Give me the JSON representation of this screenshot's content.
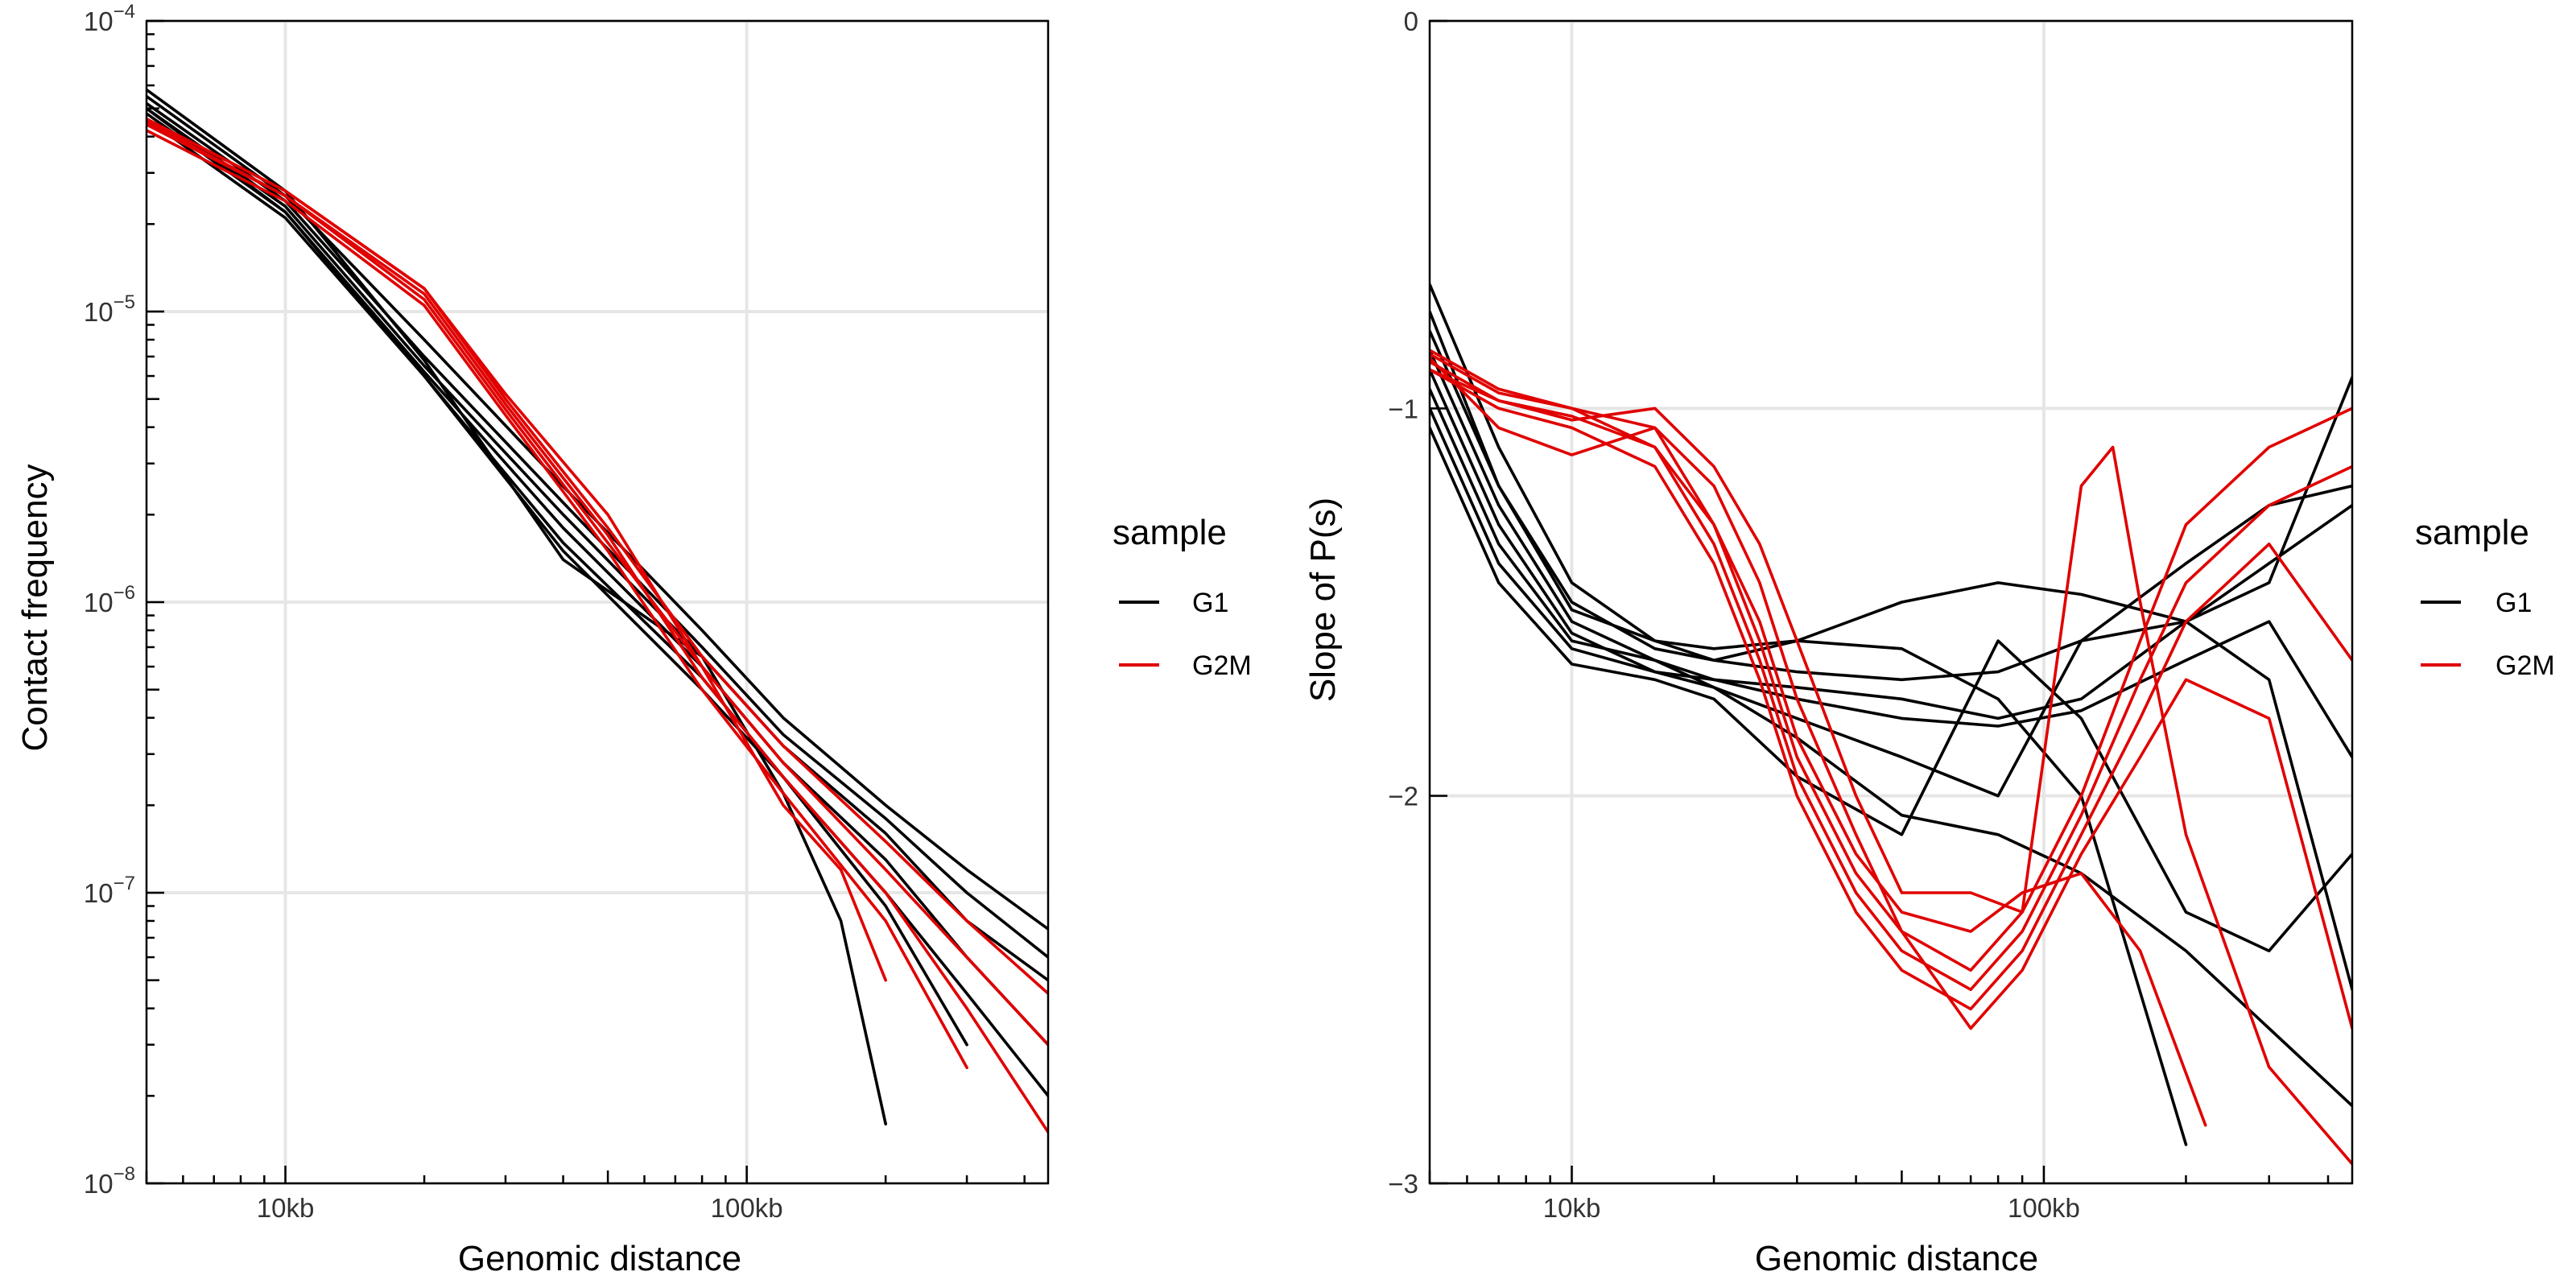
{
  "chart_data": [
    {
      "type": "line",
      "xlabel": "Genomic distance",
      "ylabel": "Contact frequency",
      "xscale": "log",
      "yscale": "log",
      "xlim": [
        5000,
        450000
      ],
      "ylim": [
        1e-08,
        0.0001
      ],
      "x_ticks": [
        {
          "value": 10000,
          "label": "10kb"
        },
        {
          "value": 100000,
          "label": "100kb"
        }
      ],
      "y_ticks": [
        {
          "value": 1e-08,
          "base": "10",
          "exp": "−8"
        },
        {
          "value": 1e-07,
          "base": "10",
          "exp": "−7"
        },
        {
          "value": 1e-06,
          "base": "10",
          "exp": "−6"
        },
        {
          "value": 1e-05,
          "base": "10",
          "exp": "−5"
        },
        {
          "value": 0.0001,
          "base": "10",
          "exp": "−4"
        }
      ],
      "grid": true,
      "legend_position": "right",
      "series": [
        {
          "group": "G1",
          "x": [
            5000,
            10000,
            20000,
            40000,
            80000,
            120000,
            200000,
            300000,
            450000
          ],
          "y": [
            5.5e-05,
            2.5e-05,
            8e-06,
            2.5e-06,
            8e-07,
            4e-07,
            2e-07,
            1.2e-07,
            7.5e-08
          ]
        },
        {
          "group": "G1",
          "x": [
            5000,
            10000,
            20000,
            40000,
            80000,
            120000,
            200000,
            300000,
            450000
          ],
          "y": [
            5.2e-05,
            2.4e-05,
            7e-06,
            2.2e-06,
            7e-07,
            3.5e-07,
            1.8e-07,
            1e-07,
            6e-08
          ]
        },
        {
          "group": "G1",
          "x": [
            5000,
            10000,
            20000,
            40000,
            80000,
            120000,
            200000,
            300000,
            450000
          ],
          "y": [
            5e-05,
            2.3e-05,
            6.5e-06,
            2e-06,
            6.5e-07,
            3.2e-07,
            1.6e-07,
            8e-08,
            5e-08
          ]
        },
        {
          "group": "G1",
          "x": [
            5000,
            10000,
            20000,
            40000,
            80000,
            120000,
            200000,
            300000,
            450000
          ],
          "y": [
            4.8e-05,
            2.2e-05,
            6.2e-06,
            1.8e-06,
            6e-07,
            2.8e-07,
            1.3e-07,
            6e-08,
            3e-08
          ]
        },
        {
          "group": "G1",
          "x": [
            5000,
            10000,
            20000,
            40000,
            80000,
            120000,
            200000,
            300000,
            450000
          ],
          "y": [
            4.6e-05,
            2.1e-05,
            6e-06,
            1.6e-06,
            5.5e-07,
            2.5e-07,
            1e-07,
            4.5e-08,
            2e-08
          ]
        },
        {
          "group": "G1",
          "x": [
            5000,
            10000,
            20000,
            40000,
            80000,
            120000,
            160000,
            200000
          ],
          "y": [
            5.8e-05,
            2.6e-05,
            6.8e-06,
            1.4e-06,
            6.5e-07,
            2.2e-07,
            8e-08,
            1.6e-08
          ]
        },
        {
          "group": "G1",
          "x": [
            5000,
            10000,
            20000,
            40000,
            80000,
            120000,
            200000,
            300000
          ],
          "y": [
            5e-05,
            2.2e-05,
            6e-06,
            1.5e-06,
            5e-07,
            2.5e-07,
            9e-08,
            3e-08
          ]
        },
        {
          "group": "G2M",
          "x": [
            5000,
            10000,
            20000,
            30000,
            50000,
            80000,
            120000,
            200000,
            300000,
            450000
          ],
          "y": [
            4.6e-05,
            2.6e-05,
            1.2e-05,
            5e-06,
            1.8e-06,
            6.5e-07,
            3.2e-07,
            1.5e-07,
            8e-08,
            4.5e-08
          ]
        },
        {
          "group": "G2M",
          "x": [
            5000,
            10000,
            20000,
            30000,
            50000,
            80000,
            120000,
            200000,
            300000,
            450000
          ],
          "y": [
            4.4e-05,
            2.5e-05,
            1.1e-05,
            4.6e-06,
            1.6e-06,
            6e-07,
            2.8e-07,
            1.2e-07,
            6e-08,
            3e-08
          ]
        },
        {
          "group": "G2M",
          "x": [
            5000,
            10000,
            20000,
            30000,
            50000,
            80000,
            120000,
            200000,
            300000,
            450000
          ],
          "y": [
            4.5e-05,
            2.5e-05,
            1.15e-05,
            4.8e-06,
            1.7e-06,
            5.5e-07,
            2.5e-07,
            1e-07,
            4e-08,
            1.5e-08
          ]
        },
        {
          "group": "G2M",
          "x": [
            5000,
            10000,
            20000,
            30000,
            50000,
            80000,
            120000,
            200000,
            300000
          ],
          "y": [
            4.2e-05,
            2.4e-05,
            1.05e-05,
            4.4e-06,
            1.5e-06,
            5e-07,
            2.2e-07,
            8e-08,
            2.5e-08
          ]
        },
        {
          "group": "G2M",
          "x": [
            5000,
            10000,
            20000,
            30000,
            50000,
            80000,
            120000,
            160000,
            200000
          ],
          "y": [
            4.6e-05,
            2.6e-05,
            1.2e-05,
            5.2e-06,
            2e-06,
            6e-07,
            2e-07,
            1.2e-07,
            5e-08
          ]
        }
      ]
    },
    {
      "type": "line",
      "xlabel": "Genomic distance",
      "ylabel": "Slope of P(s)",
      "xscale": "log",
      "yscale": "linear",
      "xlim": [
        5000,
        450000
      ],
      "ylim": [
        -3,
        0
      ],
      "x_ticks": [
        {
          "value": 10000,
          "label": "10kb"
        },
        {
          "value": 100000,
          "label": "100kb"
        }
      ],
      "y_ticks": [
        {
          "value": 0,
          "label": "0"
        },
        {
          "value": -1,
          "label": "−1"
        },
        {
          "value": -2,
          "label": "−2"
        },
        {
          "value": -3,
          "label": "−3"
        }
      ],
      "grid": true,
      "legend_position": "right",
      "series": [
        {
          "group": "G1",
          "x": [
            5000,
            7000,
            10000,
            15000,
            20000,
            30000,
            50000,
            80000,
            120000,
            200000,
            300000,
            450000
          ],
          "y": [
            -0.68,
            -1.1,
            -1.45,
            -1.6,
            -1.65,
            -1.6,
            -1.5,
            -1.45,
            -1.48,
            -1.55,
            -1.45,
            -0.92
          ]
        },
        {
          "group": "G1",
          "x": [
            5000,
            7000,
            10000,
            15000,
            20000,
            30000,
            50000,
            80000,
            120000,
            200000,
            300000,
            450000
          ],
          "y": [
            -0.8,
            -1.2,
            -1.5,
            -1.62,
            -1.65,
            -1.68,
            -1.7,
            -1.68,
            -1.6,
            -1.4,
            -1.25,
            -1.2
          ]
        },
        {
          "group": "G1",
          "x": [
            5000,
            7000,
            10000,
            15000,
            20000,
            30000,
            50000,
            80000,
            120000,
            200000,
            300000,
            450000
          ],
          "y": [
            -0.85,
            -1.25,
            -1.55,
            -1.65,
            -1.7,
            -1.72,
            -1.75,
            -1.8,
            -1.75,
            -1.55,
            -1.4,
            -1.25
          ]
        },
        {
          "group": "G1",
          "x": [
            5000,
            7000,
            10000,
            15000,
            20000,
            30000,
            50000,
            80000,
            120000,
            200000,
            300000,
            450000
          ],
          "y": [
            -0.9,
            -1.3,
            -1.58,
            -1.68,
            -1.7,
            -1.75,
            -1.8,
            -1.82,
            -1.78,
            -1.65,
            -1.55,
            -1.9
          ]
        },
        {
          "group": "G1",
          "x": [
            5000,
            7000,
            10000,
            15000,
            20000,
            30000,
            50000,
            80000,
            120000,
            200000,
            300000,
            450000
          ],
          "y": [
            -0.95,
            -1.35,
            -1.6,
            -1.65,
            -1.72,
            -1.8,
            -1.9,
            -2.0,
            -1.6,
            -1.55,
            -1.7,
            -2.5
          ]
        },
        {
          "group": "G1",
          "x": [
            5000,
            7000,
            10000,
            15000,
            20000,
            30000,
            50000,
            80000,
            120000,
            200000,
            300000,
            450000
          ],
          "y": [
            -1.0,
            -1.4,
            -1.62,
            -1.68,
            -1.72,
            -1.85,
            -2.05,
            -2.1,
            -2.2,
            -2.4,
            -2.6,
            -2.8
          ]
        },
        {
          "group": "G1",
          "x": [
            5000,
            7000,
            10000,
            15000,
            20000,
            30000,
            50000,
            80000,
            120000,
            200000,
            300000,
            450000
          ],
          "y": [
            -1.05,
            -1.45,
            -1.66,
            -1.7,
            -1.75,
            -1.95,
            -2.1,
            -1.6,
            -1.8,
            -2.3,
            -2.4,
            -2.15
          ]
        },
        {
          "group": "G1",
          "x": [
            5000,
            7000,
            10000,
            15000,
            20000,
            30000,
            50000,
            80000,
            120000,
            200000
          ],
          "y": [
            -0.75,
            -1.2,
            -1.52,
            -1.6,
            -1.62,
            -1.6,
            -1.62,
            -1.75,
            -2.0,
            -2.9
          ]
        },
        {
          "group": "G2M",
          "x": [
            5000,
            7000,
            10000,
            15000,
            20000,
            25000,
            30000,
            40000,
            50000,
            70000,
            90000,
            120000,
            160000,
            200000,
            300000,
            450000
          ],
          "y": [
            -0.85,
            -0.95,
            -1.0,
            -1.05,
            -1.3,
            -1.6,
            -1.9,
            -2.2,
            -2.35,
            -2.45,
            -2.3,
            -2.0,
            -1.6,
            -1.3,
            -1.1,
            -1.0
          ]
        },
        {
          "group": "G2M",
          "x": [
            5000,
            7000,
            10000,
            15000,
            20000,
            25000,
            30000,
            40000,
            50000,
            70000,
            90000,
            120000,
            160000,
            200000,
            300000,
            450000
          ],
          "y": [
            -0.88,
            -0.98,
            -1.02,
            -1.1,
            -1.35,
            -1.65,
            -1.95,
            -2.25,
            -2.4,
            -2.5,
            -2.35,
            -2.05,
            -1.7,
            -1.45,
            -1.25,
            -1.15
          ]
        },
        {
          "group": "G2M",
          "x": [
            5000,
            7000,
            10000,
            15000,
            20000,
            25000,
            30000,
            40000,
            50000,
            70000,
            90000,
            120000,
            160000,
            200000,
            300000,
            450000
          ],
          "y": [
            -0.9,
            -1.0,
            -1.05,
            -1.15,
            -1.4,
            -1.7,
            -2.0,
            -2.3,
            -2.45,
            -2.55,
            -2.4,
            -2.1,
            -1.8,
            -1.55,
            -1.35,
            -1.65
          ]
        },
        {
          "group": "G2M",
          "x": [
            5000,
            7000,
            10000,
            15000,
            20000,
            25000,
            30000,
            40000,
            50000,
            70000,
            90000,
            120000,
            160000,
            200000,
            300000,
            450000
          ],
          "y": [
            -0.87,
            -1.05,
            -1.12,
            -1.05,
            -1.2,
            -1.45,
            -1.75,
            -2.1,
            -2.35,
            -2.6,
            -2.45,
            -2.15,
            -1.9,
            -1.7,
            -1.8,
            -2.6
          ]
        },
        {
          "group": "G2M",
          "x": [
            5000,
            7000,
            10000,
            15000,
            20000,
            25000,
            30000,
            40000,
            50000,
            70000,
            90000,
            120000,
            140000,
            160000,
            200000,
            300000,
            450000
          ],
          "y": [
            -0.9,
            -0.98,
            -1.03,
            -1.0,
            -1.15,
            -1.35,
            -1.6,
            -2.0,
            -2.25,
            -2.25,
            -2.3,
            -1.2,
            -1.1,
            -1.5,
            -2.1,
            -2.7,
            -2.95
          ]
        },
        {
          "group": "G2M",
          "x": [
            5000,
            7000,
            10000,
            15000,
            20000,
            25000,
            30000,
            40000,
            50000,
            70000,
            90000,
            120000,
            160000,
            220000
          ],
          "y": [
            -0.86,
            -0.96,
            -1.0,
            -1.1,
            -1.3,
            -1.55,
            -1.85,
            -2.15,
            -2.3,
            -2.35,
            -2.25,
            -2.2,
            -2.4,
            -2.85
          ]
        }
      ]
    }
  ],
  "legend": {
    "title": "sample",
    "entries": [
      {
        "label": "G1",
        "color": "#000000"
      },
      {
        "label": "G2M",
        "color": "#e00000"
      }
    ]
  },
  "colors": {
    "G1": "#000000",
    "G2M": "#e00000",
    "grid": "#e6e6e6",
    "frame": "#000000"
  }
}
